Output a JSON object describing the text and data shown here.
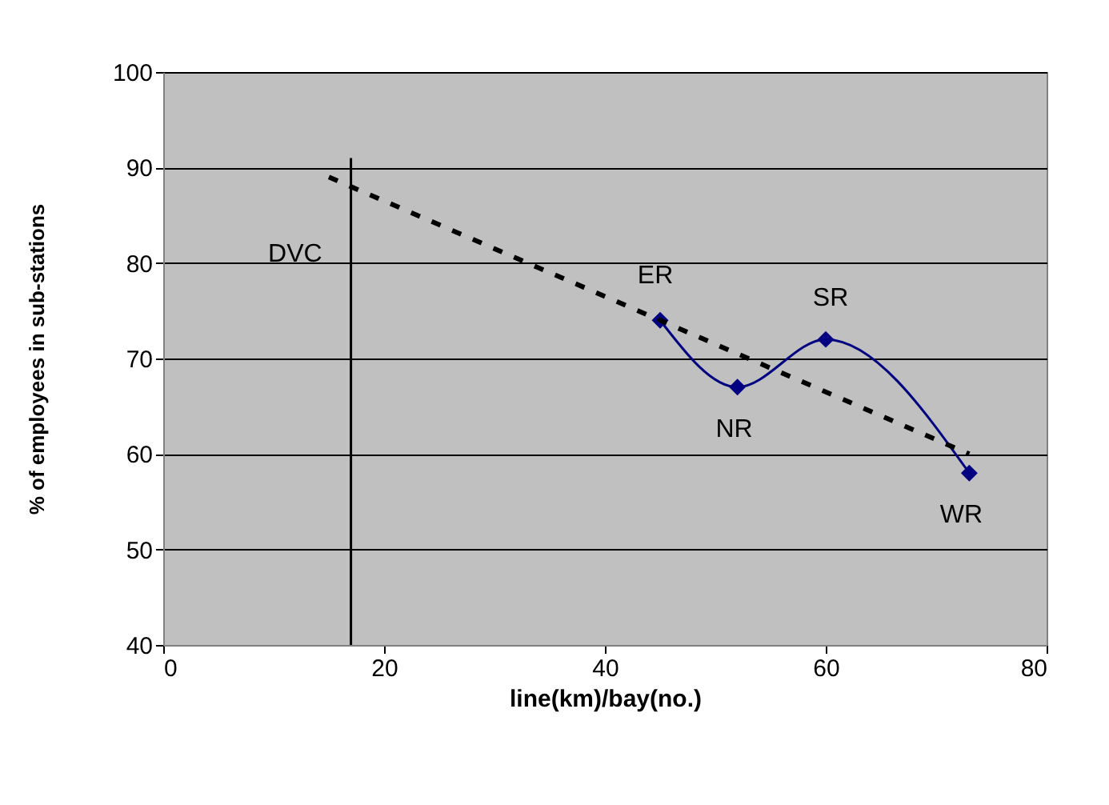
{
  "chart_data": {
    "type": "line",
    "xlabel": "line(km)/bay(no.)",
    "ylabel": "% of employees in sub-stations",
    "xlim": [
      0,
      80
    ],
    "xticks": [
      0,
      20,
      40,
      60,
      80
    ],
    "ylim": [
      40,
      100
    ],
    "yticks": [
      40,
      50,
      60,
      70,
      80,
      90,
      100
    ],
    "grid": "y",
    "series": [
      {
        "color": "#000080",
        "marker": "diamond",
        "line_style": "solid",
        "x": [
          45,
          52,
          60,
          73
        ],
        "values": [
          74,
          67,
          72,
          58
        ]
      },
      {
        "color": "#000000",
        "marker": "none",
        "line_style": "dashed",
        "x": [
          15,
          73
        ],
        "values": [
          89,
          60
        ]
      },
      {
        "color": "#000000",
        "marker": "none",
        "line_style": "solid",
        "x": [
          17,
          17
        ],
        "values": [
          40,
          91
        ]
      }
    ],
    "annotations": [
      {
        "text": "DVC",
        "x": 17,
        "y": 81
      },
      {
        "text": "ER",
        "x": 45,
        "y": 74
      },
      {
        "text": "NR",
        "x": 52,
        "y": 67
      },
      {
        "text": "SR",
        "x": 60,
        "y": 72
      },
      {
        "text": "WR",
        "x": 73,
        "y": 58
      }
    ]
  }
}
